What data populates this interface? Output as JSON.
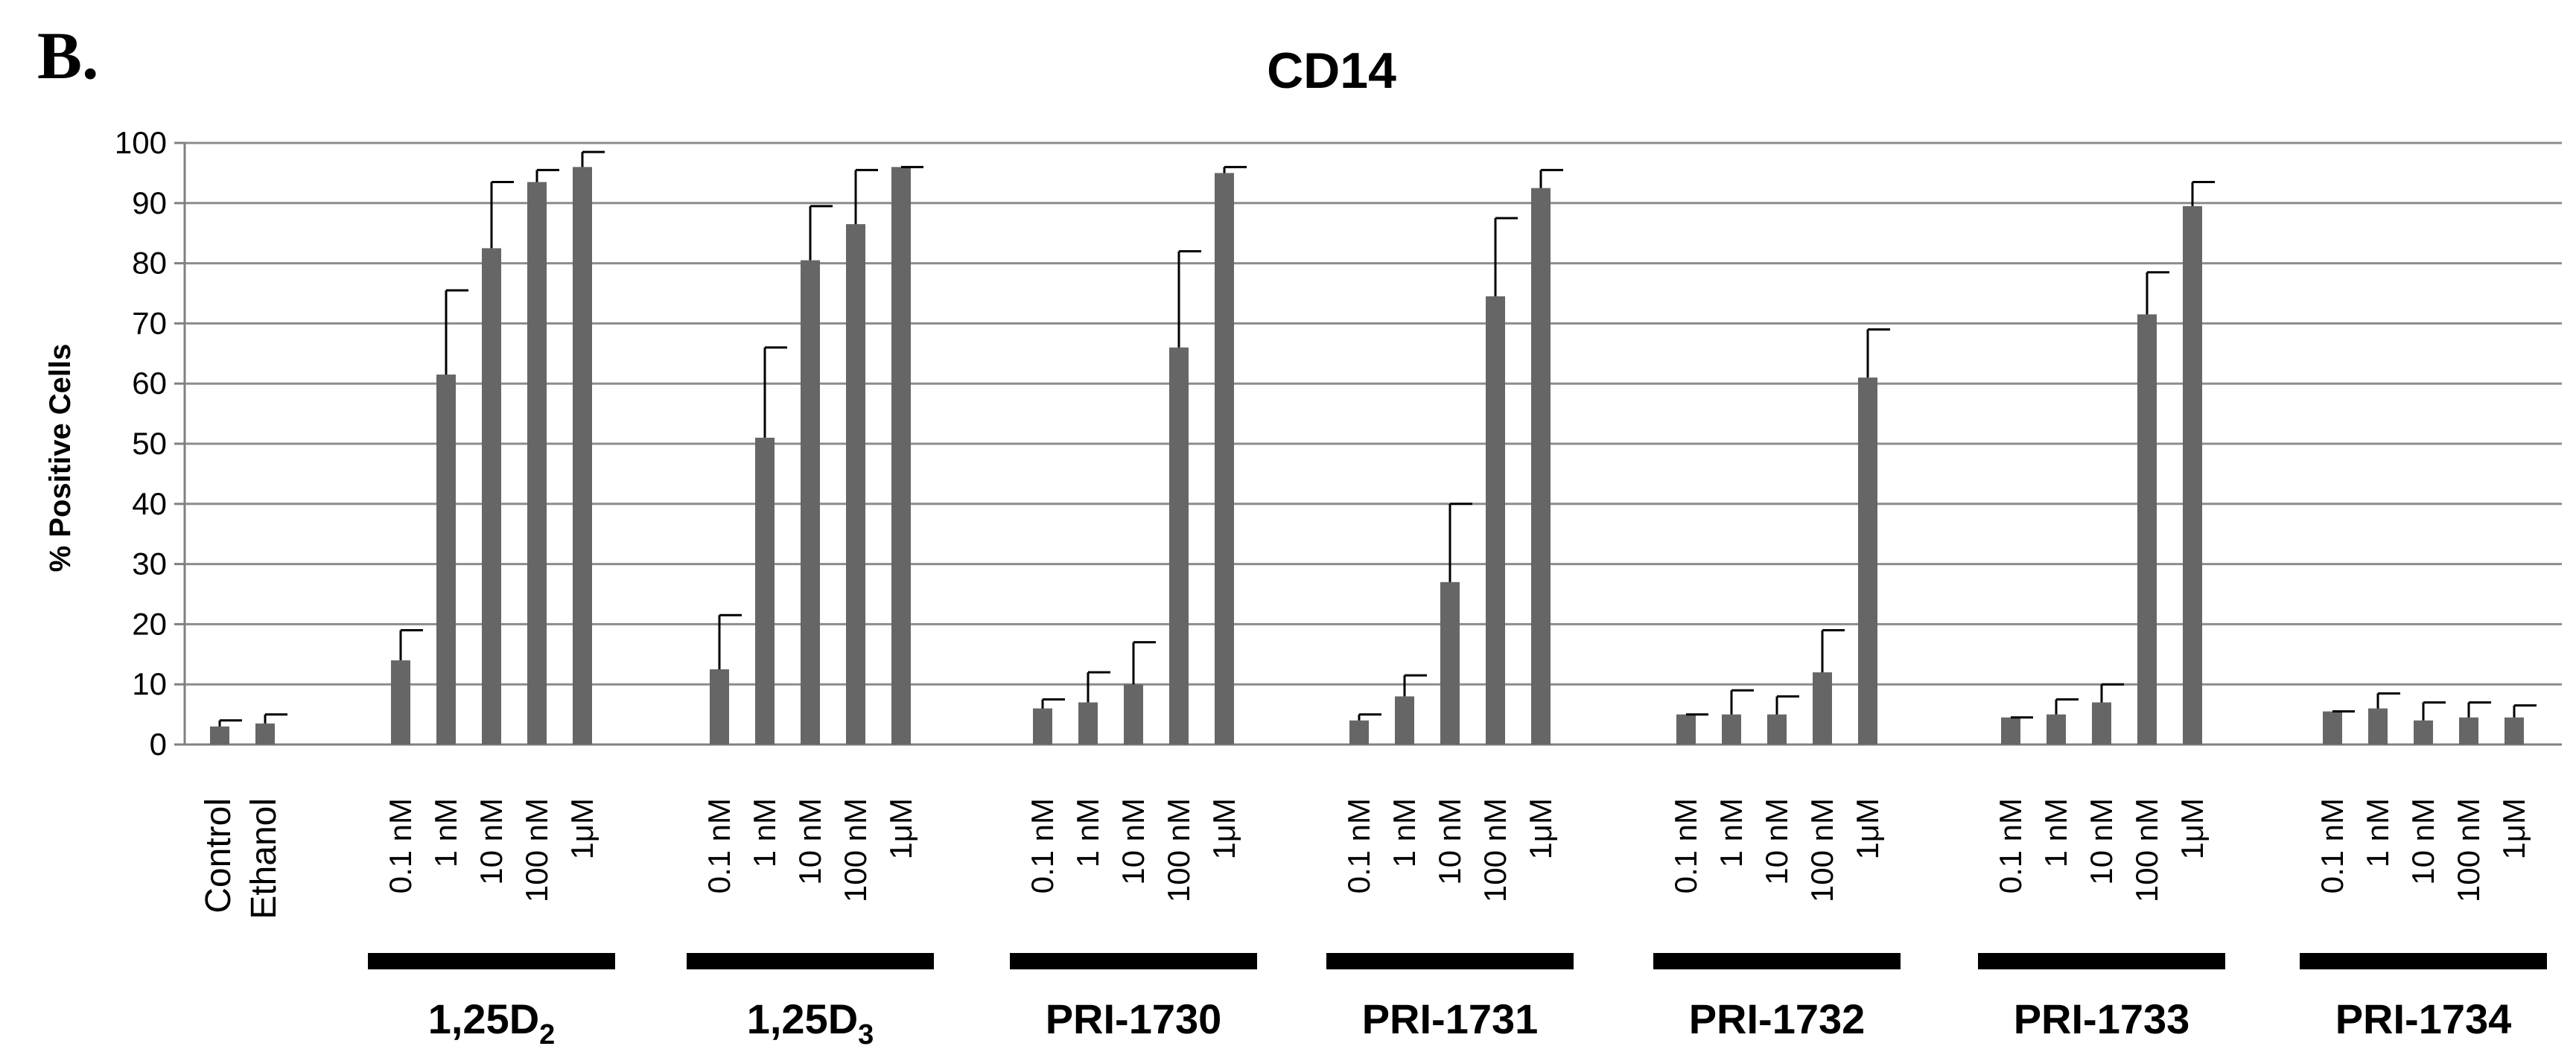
{
  "panel_label": "B.",
  "chart_data": {
    "type": "bar",
    "title": "CD14",
    "ylabel": "% Positive Cells",
    "xlabel": "",
    "ylim": [
      0,
      100
    ],
    "yticks": [
      0,
      10,
      20,
      30,
      40,
      50,
      60,
      70,
      80,
      90,
      100
    ],
    "grid": true,
    "legend": "none",
    "bar_color": "#666666",
    "controls": [
      {
        "label": "Control",
        "value": 3,
        "error": 1
      },
      {
        "label": "Ethanol",
        "value": 3.5,
        "error": 1.5
      }
    ],
    "dose_labels": [
      "0.1 nM",
      "1 nM",
      "10 nM",
      "100 nM",
      "1μM"
    ],
    "groups": [
      {
        "name": "1,25D",
        "sub": "2",
        "values": [
          14,
          61.5,
          82.5,
          93.5,
          96
        ],
        "errors": [
          5,
          14,
          11,
          2,
          2.5
        ]
      },
      {
        "name": "1,25D",
        "sub": "3",
        "values": [
          12.5,
          51,
          80.5,
          86.5,
          96
        ],
        "errors": [
          9,
          15,
          9,
          9,
          0
        ]
      },
      {
        "name": "PRI-1730",
        "sub": "",
        "values": [
          6,
          7,
          10,
          66,
          95
        ],
        "errors": [
          1.5,
          5,
          7,
          16,
          1
        ]
      },
      {
        "name": "PRI-1731",
        "sub": "",
        "values": [
          4,
          8,
          27,
          74.5,
          92.5
        ],
        "errors": [
          1,
          3.5,
          13,
          13,
          3
        ]
      },
      {
        "name": "PRI-1732",
        "sub": "",
        "values": [
          5,
          5,
          5,
          12,
          61
        ],
        "errors": [
          0,
          4,
          3,
          7,
          8
        ]
      },
      {
        "name": "PRI-1733",
        "sub": "",
        "values": [
          4.5,
          5,
          7,
          71.5,
          89.5
        ],
        "errors": [
          0,
          2.5,
          3,
          7,
          4
        ]
      },
      {
        "name": "PRI-1734",
        "sub": "",
        "values": [
          5.5,
          6,
          4,
          4.5,
          4.5
        ],
        "errors": [
          0,
          2.5,
          3,
          2.5,
          2
        ]
      }
    ]
  }
}
